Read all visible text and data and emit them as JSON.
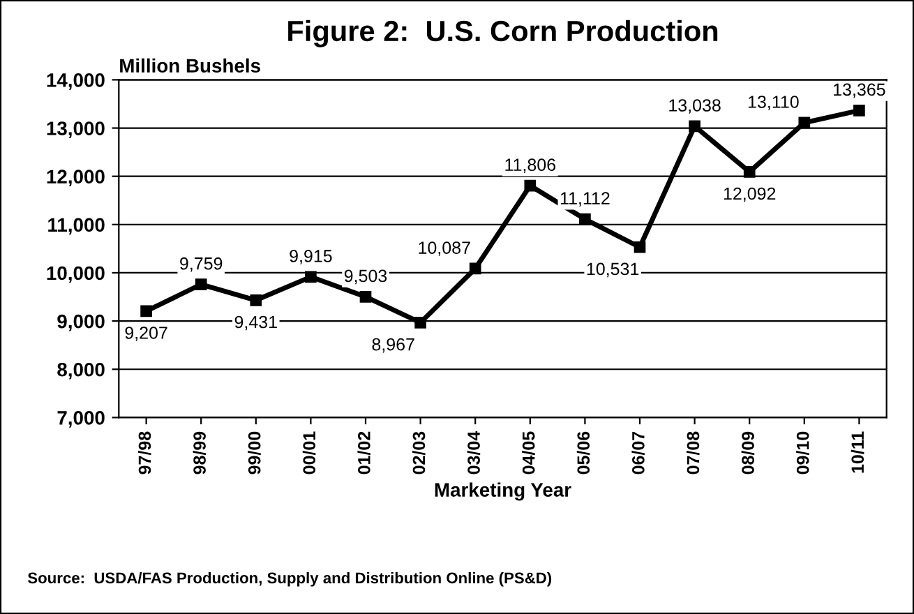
{
  "chart_data": {
    "type": "line",
    "title": "Figure 2:  U.S. Corn Production",
    "ylabel": "Million Bushels",
    "xlabel": "Marketing Year",
    "categories": [
      "97/98",
      "98/99",
      "99/00",
      "00/01",
      "01/02",
      "02/03",
      "03/04",
      "04/05",
      "05/06",
      "06/07",
      "07/08",
      "08/09",
      "09/10",
      "10/11"
    ],
    "series": [
      {
        "color": "#000000",
        "values": [
          9207,
          9759,
          9431,
          9915,
          9503,
          8967,
          10087,
          11806,
          11112,
          10531,
          13038,
          12092,
          13110,
          13365
        ],
        "value_labels": [
          "9,207",
          "9,759",
          "9,431",
          "9,915",
          "9,503",
          "8,967",
          "10,087",
          "11,806",
          "11,112",
          "10,531",
          "13,038",
          "12,092",
          "13,110",
          "13,365"
        ]
      }
    ],
    "ylim": [
      7000,
      14000
    ],
    "yticks": [
      {
        "value": 7000,
        "label": "7,000"
      },
      {
        "value": 8000,
        "label": "8,000"
      },
      {
        "value": 9000,
        "label": "9,000"
      },
      {
        "value": 10000,
        "label": "10,000"
      },
      {
        "value": 11000,
        "label": "11,000"
      },
      {
        "value": 12000,
        "label": "12,000"
      },
      {
        "value": 13000,
        "label": "13,000"
      },
      {
        "value": 14000,
        "label": "14,000"
      }
    ],
    "grid": "y",
    "marker": "square",
    "line_style": "solid",
    "annotations": [
      "Source:  USDA/FAS Production, Supply and Distribution Online (PS&D)"
    ]
  }
}
